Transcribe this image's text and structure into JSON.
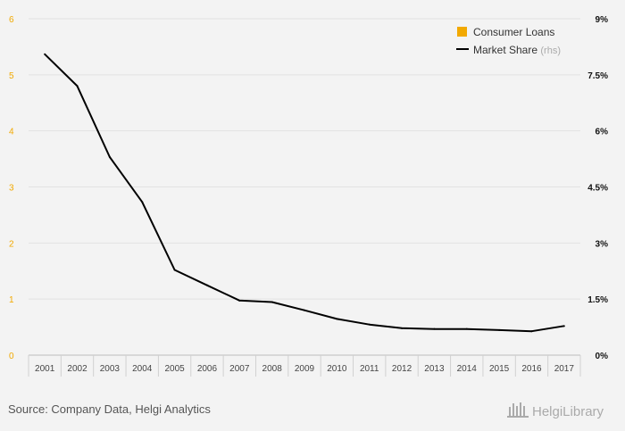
{
  "chart_data": {
    "type": "line",
    "title": "",
    "x": [
      "2001",
      "2002",
      "2003",
      "2004",
      "2005",
      "2006",
      "2007",
      "2008",
      "2009",
      "2010",
      "2011",
      "2012",
      "2013",
      "2014",
      "2015",
      "2016",
      "2017"
    ],
    "series": [
      {
        "name": "Market Share",
        "axis": "right",
        "color": "#000000",
        "values": [
          8.05,
          7.2,
          5.3,
          4.1,
          2.28,
          1.87,
          1.46,
          1.42,
          1.2,
          0.97,
          0.82,
          0.72,
          0.7,
          0.7,
          0.67,
          0.64,
          0.78
        ]
      }
    ],
    "legend_series": [
      {
        "name": "Consumer Loans",
        "symbol": "square",
        "color": "#f2a900"
      },
      {
        "name": "Market Share",
        "suffix": "(rhs)",
        "symbol": "line",
        "color": "#000000"
      }
    ],
    "left_axis": {
      "ylim": [
        0,
        6
      ],
      "ticks": [
        "0",
        "1",
        "2",
        "3",
        "4",
        "5",
        "6"
      ],
      "color": "#f2a900"
    },
    "right_axis": {
      "ylim": [
        0,
        9
      ],
      "ticks": [
        "0%",
        "1.5%",
        "3%",
        "4.5%",
        "6%",
        "7.5%",
        "9%"
      ]
    },
    "legend_position": "top-right",
    "grid": true
  },
  "footer": {
    "source": "Source: Company Data, Helgi Analytics",
    "logo_text": "HelgiLibrary"
  }
}
